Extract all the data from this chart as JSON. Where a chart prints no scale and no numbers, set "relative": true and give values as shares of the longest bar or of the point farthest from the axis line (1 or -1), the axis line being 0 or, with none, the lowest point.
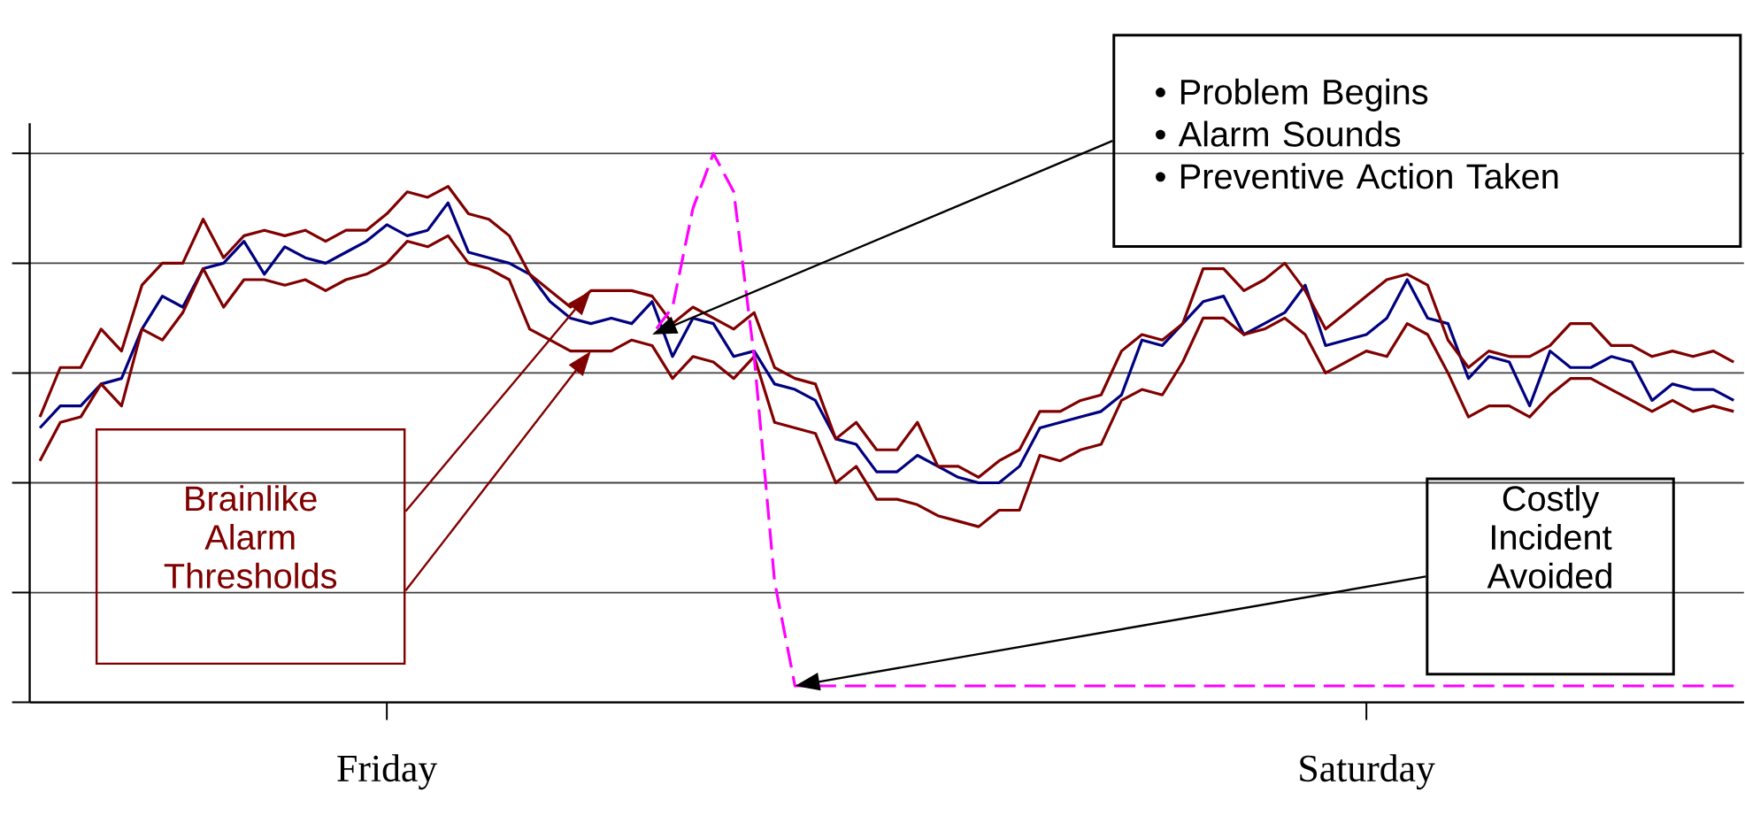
{
  "chart_data": {
    "type": "line",
    "relative": true,
    "grid": "y",
    "categories": [
      null,
      null,
      null,
      null,
      null,
      null,
      null,
      null,
      null,
      null,
      null,
      null,
      null,
      null,
      null,
      null,
      null,
      "Friday",
      null,
      null,
      null,
      null,
      null,
      null,
      null,
      null,
      null,
      null,
      null,
      null,
      null,
      null,
      null,
      null,
      null,
      null,
      null,
      null,
      null,
      null,
      null,
      null,
      null,
      null,
      null,
      null,
      null,
      null,
      null,
      null,
      null,
      null,
      null,
      null,
      null,
      null,
      null,
      null,
      null,
      null,
      null,
      null,
      null,
      null,
      null,
      "Saturday",
      null,
      null,
      null,
      null,
      null,
      null,
      null,
      null,
      null,
      null,
      null,
      null,
      null,
      null,
      null,
      null,
      null,
      null
    ],
    "annotations": [
      "• Problem Begins",
      "• Alarm Sounds",
      "• Preventive Action Taken",
      "Brainlike Alarm Thresholds",
      "Costly Incident Avoided"
    ],
    "series": [
      {
        "color": "#000080",
        "values": [
          0.5,
          0.54,
          0.54,
          0.58,
          0.59,
          0.68,
          0.74,
          0.72,
          0.79,
          0.8,
          0.84,
          0.78,
          0.83,
          0.81,
          0.8,
          0.82,
          0.84,
          0.87,
          0.85,
          0.86,
          0.91,
          0.82,
          0.81,
          0.8,
          0.78,
          0.73,
          0.7,
          0.69,
          0.7,
          0.69,
          0.73,
          0.63,
          0.7,
          0.69,
          0.63,
          0.64,
          0.58,
          0.57,
          0.55,
          0.48,
          0.47,
          0.42,
          0.42,
          0.45,
          0.43,
          0.41,
          0.4,
          0.4,
          0.43,
          0.5,
          0.51,
          0.52,
          0.53,
          0.56,
          0.66,
          0.65,
          0.69,
          0.73,
          0.74,
          0.67,
          0.69,
          0.71,
          0.76,
          0.65,
          0.66,
          0.67,
          0.7,
          0.77,
          0.7,
          0.69,
          0.59,
          0.63,
          0.62,
          0.54,
          0.64,
          0.61,
          0.61,
          0.63,
          0.62,
          0.55,
          0.58,
          0.57,
          0.57,
          0.55
        ]
      },
      {
        "color": "#800000",
        "values": [
          0.52,
          0.61,
          0.61,
          0.68,
          0.64,
          0.76,
          0.8,
          0.8,
          0.88,
          0.81,
          0.85,
          0.86,
          0.85,
          0.86,
          0.84,
          0.86,
          0.86,
          0.89,
          0.93,
          0.92,
          0.94,
          0.89,
          0.88,
          0.85,
          0.78,
          0.75,
          0.72,
          0.75,
          0.75,
          0.75,
          0.74,
          0.69,
          0.72,
          0.7,
          0.68,
          0.71,
          0.61,
          0.59,
          0.58,
          0.48,
          0.51,
          0.46,
          0.46,
          0.51,
          0.43,
          0.43,
          0.41,
          0.44,
          0.46,
          0.53,
          0.53,
          0.55,
          0.56,
          0.64,
          0.67,
          0.66,
          0.69,
          0.79,
          0.79,
          0.75,
          0.77,
          0.8,
          0.75,
          0.68,
          0.71,
          0.74,
          0.77,
          0.78,
          0.76,
          0.66,
          0.61,
          0.64,
          0.63,
          0.63,
          0.65,
          0.69,
          0.69,
          0.65,
          0.65,
          0.63,
          0.64,
          0.63,
          0.64,
          0.62
        ]
      },
      {
        "color": "#800000",
        "values": [
          0.44,
          0.51,
          0.52,
          0.58,
          0.54,
          0.68,
          0.66,
          0.71,
          0.79,
          0.72,
          0.77,
          0.77,
          0.76,
          0.77,
          0.75,
          0.77,
          0.78,
          0.8,
          0.84,
          0.83,
          0.85,
          0.8,
          0.79,
          0.77,
          0.68,
          0.66,
          0.64,
          0.64,
          0.64,
          0.66,
          0.65,
          0.59,
          0.63,
          0.62,
          0.59,
          0.63,
          0.51,
          0.5,
          0.49,
          0.4,
          0.43,
          0.37,
          0.37,
          0.36,
          0.34,
          0.33,
          0.32,
          0.35,
          0.35,
          0.45,
          0.44,
          0.46,
          0.47,
          0.55,
          0.57,
          0.56,
          0.62,
          0.7,
          0.7,
          0.67,
          0.68,
          0.7,
          0.67,
          0.6,
          0.62,
          0.64,
          0.63,
          0.69,
          0.67,
          0.6,
          0.52,
          0.54,
          0.54,
          0.52,
          0.56,
          0.59,
          0.59,
          0.57,
          0.55,
          0.53,
          0.55,
          0.53,
          0.54,
          0.53
        ]
      },
      {
        "color": "#ff00ff",
        "line_style": "dashed",
        "values": [
          null,
          null,
          null,
          null,
          null,
          null,
          null,
          null,
          null,
          null,
          null,
          null,
          null,
          null,
          null,
          null,
          null,
          null,
          null,
          null,
          null,
          null,
          null,
          null,
          null,
          null,
          null,
          null,
          null,
          null,
          0.67,
          0.72,
          0.9,
          1.0,
          0.93,
          0.63,
          0.22,
          0.03,
          0.03,
          0.03,
          0.03,
          0.03,
          0.03,
          0.03,
          0.03,
          0.03,
          0.03,
          0.03,
          0.03,
          0.03,
          0.03,
          0.03,
          0.03,
          0.03,
          0.03,
          0.03,
          0.03,
          0.03,
          0.03,
          0.03,
          0.03,
          0.03,
          0.03,
          0.03,
          0.03,
          0.03,
          0.03,
          0.03,
          0.03,
          0.03,
          0.03,
          0.03,
          0.03,
          0.03,
          0.03,
          0.03,
          0.03,
          0.03,
          0.03,
          0.03,
          0.03,
          0.03,
          0.03,
          0.03
        ]
      }
    ]
  }
}
